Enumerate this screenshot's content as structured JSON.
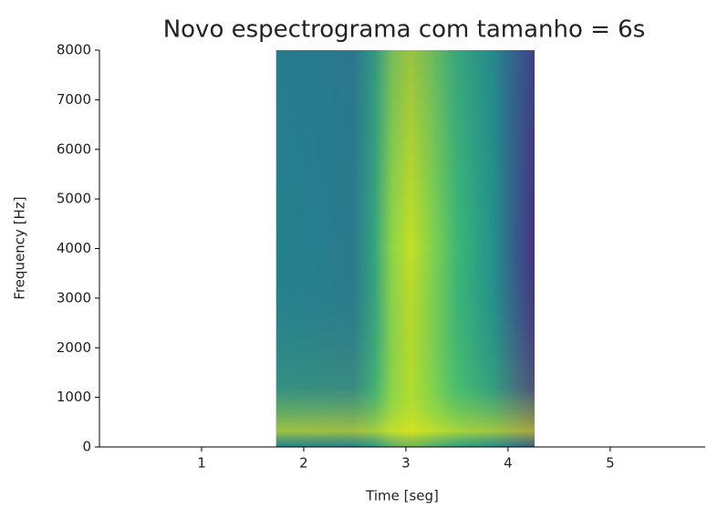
{
  "chart_data": {
    "type": "spectrogram",
    "title": "Novo espectrograma com tamanho = 6s",
    "x_label": "Time [seg]",
    "y_label": "Frequency [Hz]",
    "xlim": [
      0,
      5.93
    ],
    "ylim": [
      0,
      8000
    ],
    "xticks": [
      1,
      2,
      3,
      4,
      5
    ],
    "yticks": [
      0,
      1000,
      2000,
      3000,
      4000,
      5000,
      6000,
      7000,
      8000
    ],
    "extent": [
      1.73,
      4.26
    ],
    "colormap": "viridis"
  }
}
